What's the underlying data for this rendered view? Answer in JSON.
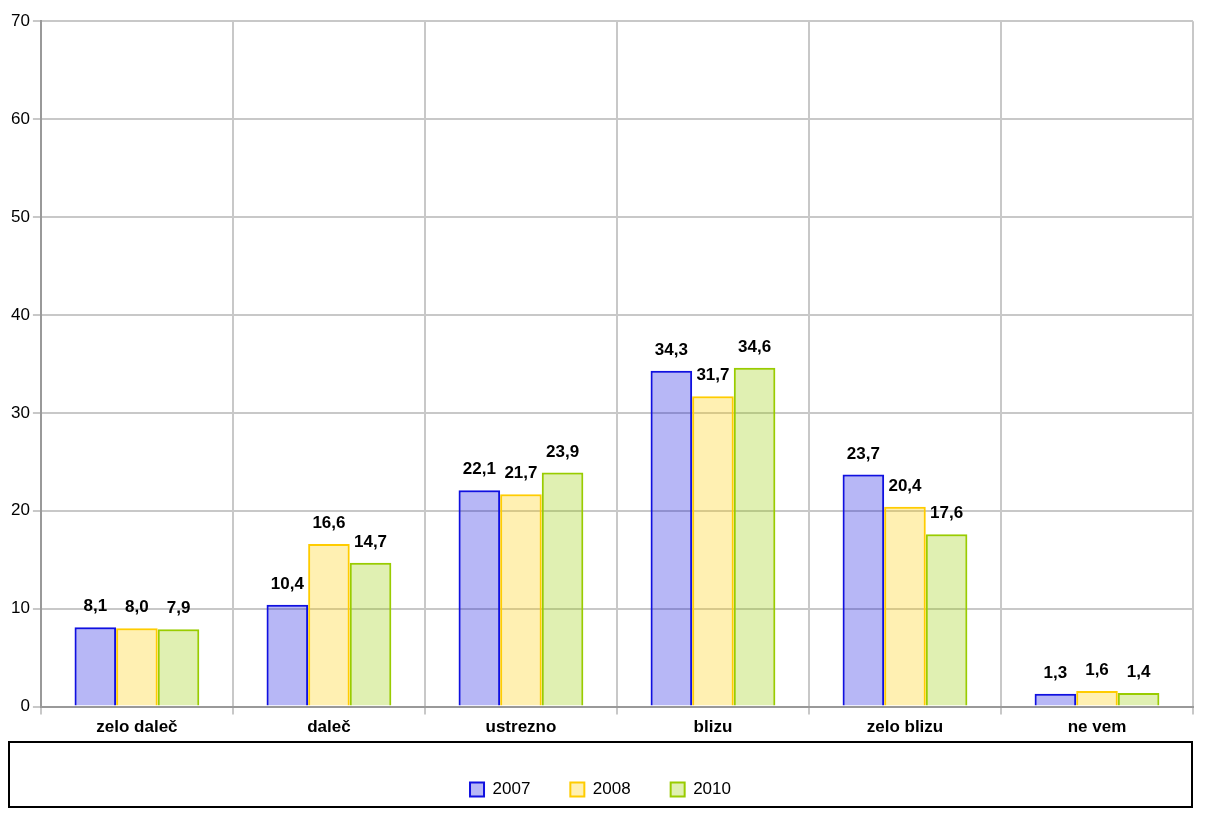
{
  "chart_data": {
    "type": "bar",
    "categories": [
      "zelo daleč",
      "daleč",
      "ustrezno",
      "blizu",
      "zelo blizu",
      "ne vem"
    ],
    "series": [
      {
        "name": "2007",
        "color": "#1010e0",
        "values": [
          8.1,
          10.4,
          22.1,
          34.3,
          23.7,
          1.3
        ],
        "value_labels": [
          "8,1",
          "10,4",
          "22,1",
          "34,3",
          "23,7",
          "1,3"
        ]
      },
      {
        "name": "2008",
        "color": "#ffcc00",
        "values": [
          8.0,
          16.6,
          21.7,
          31.7,
          20.4,
          1.6
        ],
        "value_labels": [
          "8,0",
          "16,6",
          "21,7",
          "31,7",
          "20,4",
          "1,6"
        ]
      },
      {
        "name": "2010",
        "color": "#99cc00",
        "values": [
          7.9,
          14.7,
          23.9,
          34.6,
          17.6,
          1.4
        ],
        "value_labels": [
          "7,9",
          "14,7",
          "23,9",
          "34,6",
          "17,6",
          "1,4"
        ]
      }
    ],
    "ylim": [
      0,
      70
    ],
    "yticks": [
      0,
      10,
      20,
      30,
      40,
      50,
      60,
      70
    ],
    "grid": true,
    "legend": "bottom"
  }
}
